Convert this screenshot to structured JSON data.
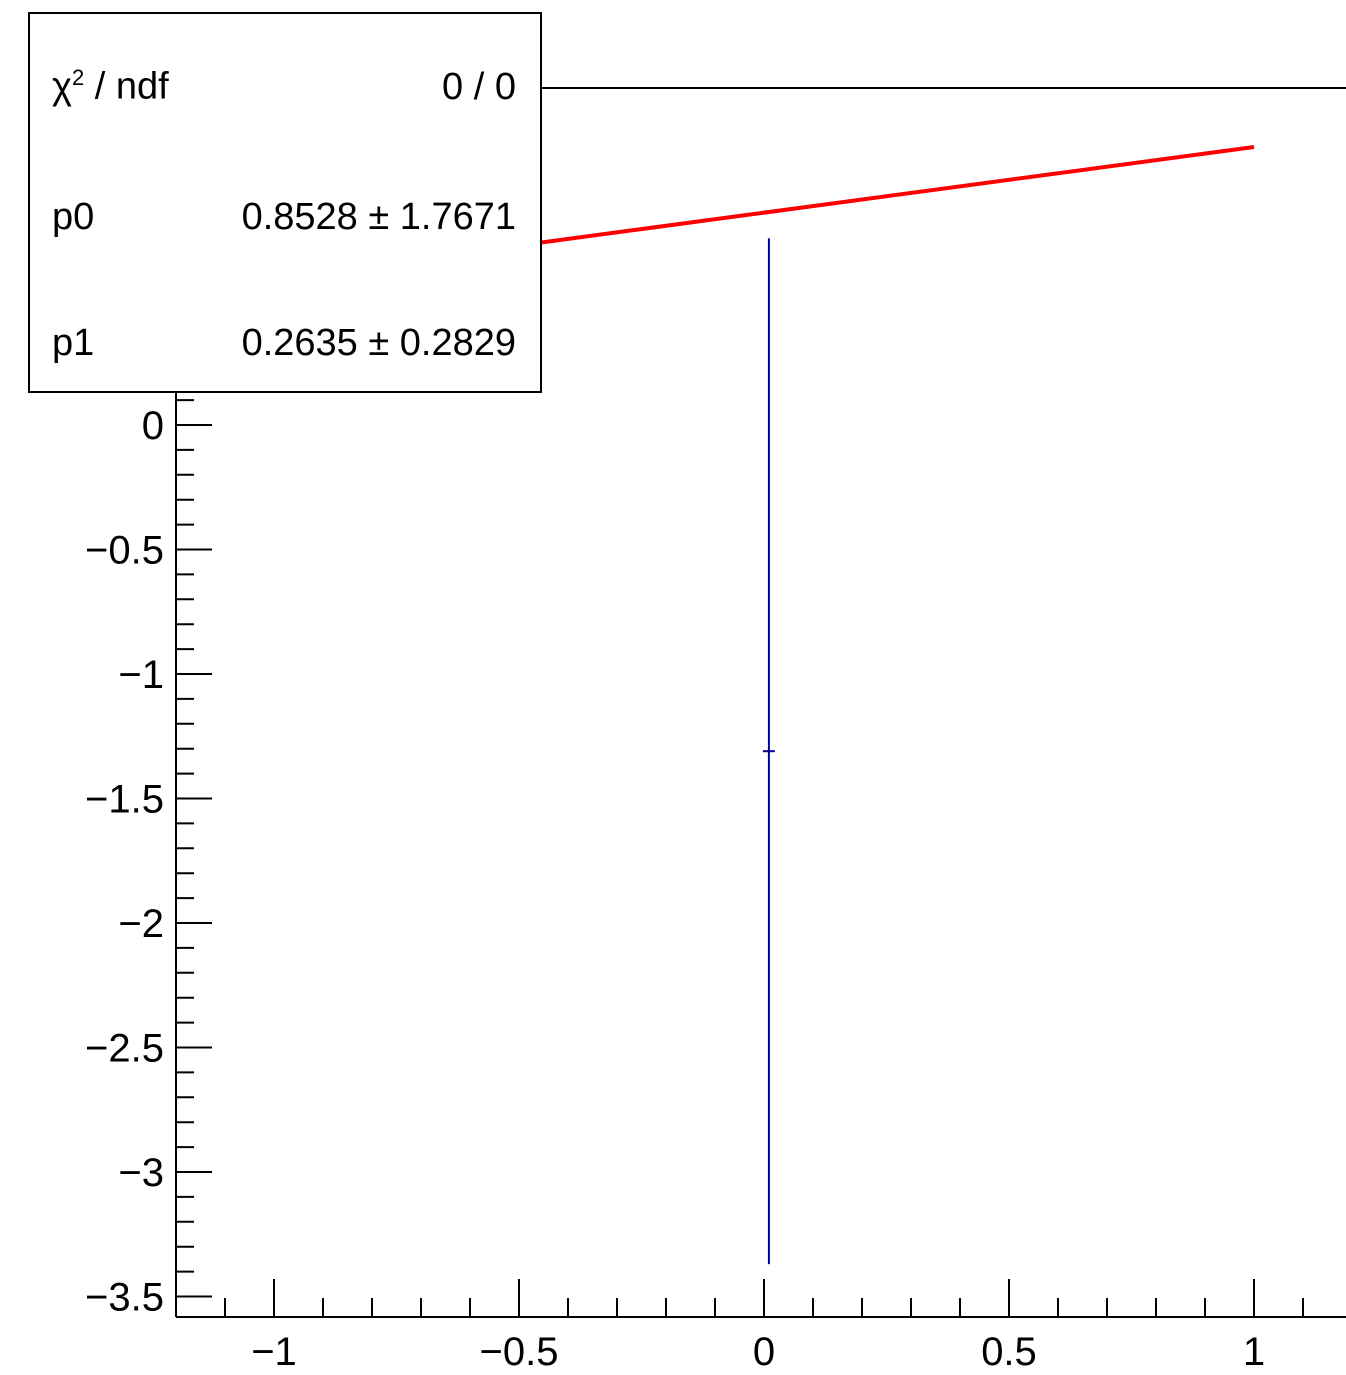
{
  "chart_data": {
    "type": "scatter",
    "title": "",
    "xlabel": "",
    "ylabel": "",
    "xlim": [
      -1.2,
      1.35
    ],
    "ylim": [
      -3.55,
      1.35
    ],
    "x_ticks": [
      -1,
      -0.5,
      0,
      0.5,
      1
    ],
    "x_tick_labels": [
      "−1",
      "−0.5",
      "0",
      "0.5",
      "1"
    ],
    "y_ticks": [
      -3.5,
      -3,
      -2.5,
      -2,
      -1.5,
      -1,
      -0.5,
      0
    ],
    "y_tick_labels": [
      "−3.5",
      "−3",
      "−2.5",
      "−2",
      "−1.5",
      "−1",
      "−0.5",
      "0"
    ],
    "points": [
      {
        "x": 0.01,
        "y": -1.31,
        "y_err_low": 2.06,
        "y_err_high": 2.06,
        "color": "#000099"
      }
    ],
    "fit": {
      "function": "pol1",
      "color": "#ff0000",
      "x_range": [
        -0.5,
        1.0
      ],
      "p0": 0.8528,
      "p1": 0.2635
    },
    "stats": {
      "rows": [
        {
          "label": "χ² / ndf",
          "value": "0 / 0"
        },
        {
          "label": "p0",
          "value": "0.8528 ± 1.7671"
        },
        {
          "label": "p1",
          "value": "0.2635 ± 0.2829"
        }
      ]
    },
    "grid": false
  }
}
